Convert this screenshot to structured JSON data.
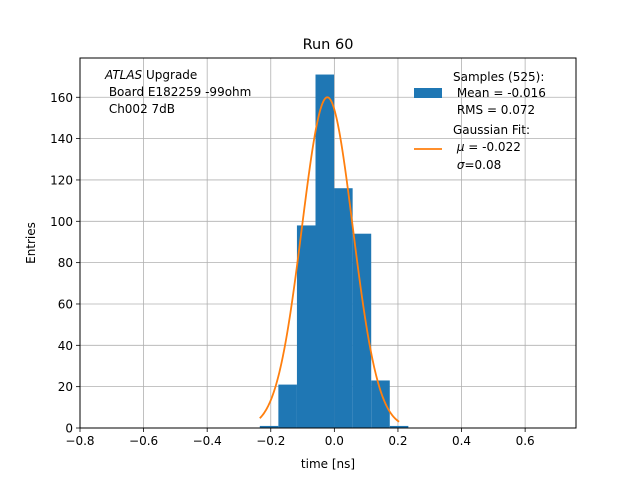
{
  "chart_data": {
    "type": "bar",
    "title": "Run 60",
    "xlabel": "time [ns]",
    "ylabel": "Entries",
    "xlim": [
      -0.8,
      0.76
    ],
    "ylim": [
      0,
      179
    ],
    "xticks": [
      -0.8,
      -0.6,
      -0.4,
      -0.2,
      0.0,
      0.2,
      0.4,
      0.6
    ],
    "xtick_labels": [
      "−0.8",
      "−0.6",
      "−0.4",
      "−0.2",
      "0.0",
      "0.2",
      "0.4",
      "0.6"
    ],
    "yticks": [
      0,
      20,
      40,
      60,
      80,
      100,
      120,
      140,
      160
    ],
    "ytick_labels": [
      "0",
      "20",
      "40",
      "60",
      "80",
      "100",
      "120",
      "140",
      "160"
    ],
    "grid": true,
    "legend_position": "top-right",
    "histogram": {
      "name": "Samples (525):",
      "color": "#1f77b4",
      "bin_width": 0.0584,
      "bin_lefts": [
        -0.2345,
        -0.1761,
        -0.1177,
        -0.0593,
        -0.0009,
        0.0575,
        0.1159,
        0.1743
      ],
      "counts": [
        1,
        21,
        98,
        171,
        116,
        94,
        23,
        1
      ]
    },
    "gaussian_fit": {
      "name": "Gaussian Fit:",
      "color": "#ff7f0e",
      "mu": -0.022,
      "sigma": 0.08,
      "amplitude": 160,
      "x_range": [
        -0.2345,
        0.2035
      ]
    },
    "annotation": {
      "italic": "ATLAS",
      "rest": " Upgrade",
      "line2": " Board E182259 -99ohm",
      "line3": " Ch002 7dB"
    },
    "legend": {
      "samples_title": "Samples (525):",
      "samples_mean": " Mean = -0.016",
      "samples_rms": " RMS = 0.072",
      "fit_title": "Gaussian Fit:",
      "fit_mu_sym": "μ",
      "fit_mu_val": " = -0.022",
      "fit_sigma_sym": "σ",
      "fit_sigma_val": "=0.08"
    }
  }
}
